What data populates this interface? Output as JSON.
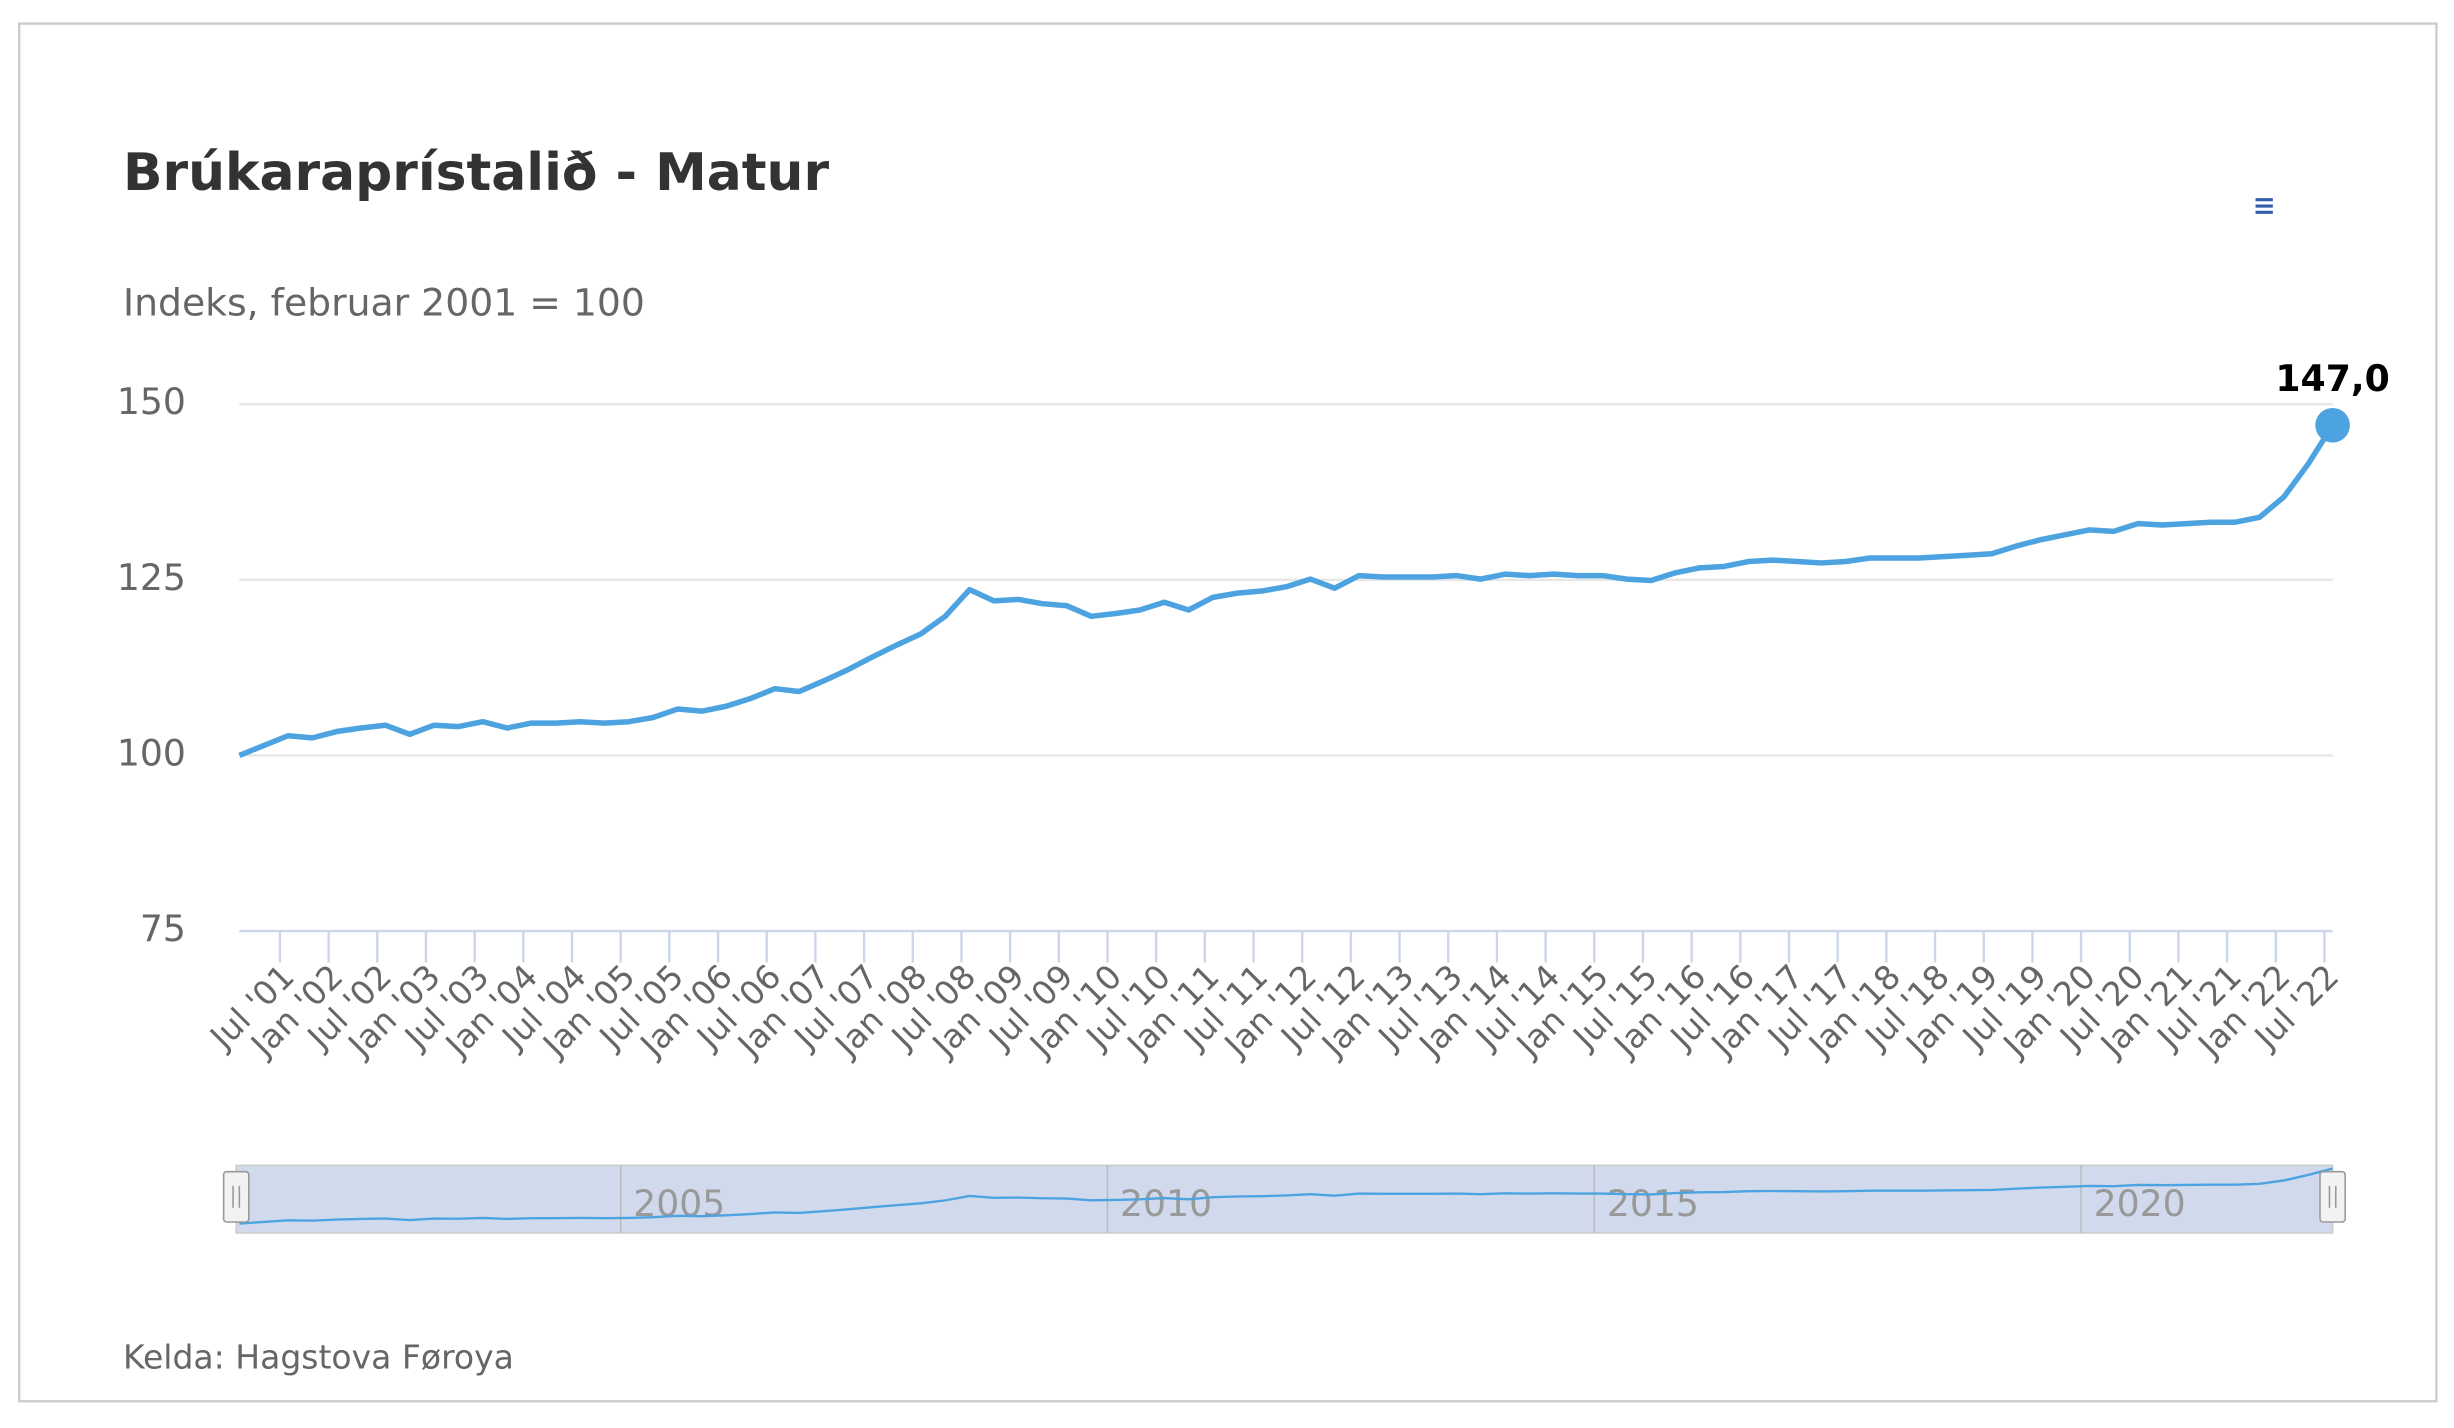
{
  "chart_data": {
    "type": "line",
    "title": "Brúkaraprístalið - Matur",
    "subtitle": "Indeks, februar 2001 = 100",
    "credits": "Kelda: Hagstova Føroya",
    "color": "#4da3e0",
    "x": [
      "2001-02",
      "2001-05",
      "2001-08",
      "2001-11",
      "2002-02",
      "2002-05",
      "2002-08",
      "2002-11",
      "2003-02",
      "2003-05",
      "2003-08",
      "2003-11",
      "2004-02",
      "2004-05",
      "2004-08",
      "2004-11",
      "2005-02",
      "2005-05",
      "2005-08",
      "2005-11",
      "2006-02",
      "2006-05",
      "2006-08",
      "2006-11",
      "2007-02",
      "2007-05",
      "2007-08",
      "2007-11",
      "2008-02",
      "2008-05",
      "2008-08",
      "2008-11",
      "2009-02",
      "2009-05",
      "2009-08",
      "2009-11",
      "2010-02",
      "2010-05",
      "2010-08",
      "2010-11",
      "2011-02",
      "2011-05",
      "2011-08",
      "2011-11",
      "2012-02",
      "2012-05",
      "2012-08",
      "2012-11",
      "2013-02",
      "2013-05",
      "2013-08",
      "2013-11",
      "2014-02",
      "2014-05",
      "2014-08",
      "2014-11",
      "2015-02",
      "2015-05",
      "2015-08",
      "2015-11",
      "2016-02",
      "2016-05",
      "2016-08",
      "2016-11",
      "2017-02",
      "2017-05",
      "2017-08",
      "2017-11",
      "2018-02",
      "2018-05",
      "2018-08",
      "2018-11",
      "2019-02",
      "2019-05",
      "2019-08",
      "2019-11",
      "2020-02",
      "2020-05",
      "2020-08",
      "2020-11",
      "2021-02",
      "2021-05",
      "2021-08",
      "2021-11",
      "2022-02",
      "2022-05",
      "2022-08"
    ],
    "values": [
      100,
      101.4,
      102.8,
      102.5,
      103.4,
      103.9,
      104.3,
      103.0,
      104.3,
      104.1,
      104.8,
      103.9,
      104.6,
      104.6,
      104.8,
      104.6,
      104.8,
      105.4,
      106.6,
      106.3,
      107.0,
      108.1,
      109.5,
      109.1,
      110.6,
      112.2,
      114.0,
      115.7,
      117.3,
      119.8,
      123.6,
      122.0,
      122.2,
      121.6,
      121.3,
      119.8,
      120.2,
      120.7,
      121.8,
      120.7,
      122.5,
      123.1,
      123.4,
      124.0,
      125.1,
      123.8,
      125.6,
      125.4,
      125.4,
      125.4,
      125.6,
      125.1,
      125.8,
      125.6,
      125.8,
      125.6,
      125.6,
      125.1,
      124.9,
      126.0,
      126.7,
      126.9,
      127.6,
      127.8,
      127.6,
      127.4,
      127.6,
      128.1,
      128.1,
      128.1,
      128.3,
      128.5,
      128.7,
      129.8,
      130.7,
      131.4,
      132.1,
      131.9,
      133.0,
      132.8,
      133.0,
      133.2,
      133.2,
      133.9,
      136.8,
      141.5,
      147.0
    ],
    "value_labels": [
      null,
      null,
      null,
      null,
      null,
      null,
      null,
      null,
      null,
      null,
      null,
      null,
      null,
      null,
      null,
      null,
      null,
      null,
      null,
      null,
      null,
      null,
      null,
      null,
      null,
      null,
      null,
      null,
      null,
      null,
      null,
      null,
      null,
      null,
      null,
      null,
      null,
      null,
      null,
      null,
      null,
      null,
      null,
      null,
      null,
      null,
      null,
      null,
      null,
      null,
      null,
      null,
      null,
      null,
      null,
      null,
      null,
      null,
      null,
      null,
      null,
      null,
      null,
      null,
      null,
      null,
      null,
      null,
      null,
      null,
      null,
      null,
      null,
      null,
      null,
      null,
      null,
      null,
      null,
      null,
      null,
      null,
      null,
      null,
      null,
      null,
      "147,0"
    ],
    "xlim": [
      "2001-02",
      "2022-08"
    ],
    "xticks": [
      {
        "value": "2001-07",
        "label": "Jul '01"
      },
      {
        "value": "2002-01",
        "label": "Jan '02"
      },
      {
        "value": "2002-07",
        "label": "Jul '02"
      },
      {
        "value": "2003-01",
        "label": "Jan '03"
      },
      {
        "value": "2003-07",
        "label": "Jul '03"
      },
      {
        "value": "2004-01",
        "label": "Jan '04"
      },
      {
        "value": "2004-07",
        "label": "Jul '04"
      },
      {
        "value": "2005-01",
        "label": "Jan '05"
      },
      {
        "value": "2005-07",
        "label": "Jul '05"
      },
      {
        "value": "2006-01",
        "label": "Jan '06"
      },
      {
        "value": "2006-07",
        "label": "Jul '06"
      },
      {
        "value": "2007-01",
        "label": "Jan '07"
      },
      {
        "value": "2007-07",
        "label": "Jul '07"
      },
      {
        "value": "2008-01",
        "label": "Jan '08"
      },
      {
        "value": "2008-07",
        "label": "Jul '08"
      },
      {
        "value": "2009-01",
        "label": "Jan '09"
      },
      {
        "value": "2009-07",
        "label": "Jul '09"
      },
      {
        "value": "2010-01",
        "label": "Jan '10"
      },
      {
        "value": "2010-07",
        "label": "Jul '10"
      },
      {
        "value": "2011-01",
        "label": "Jan '11"
      },
      {
        "value": "2011-07",
        "label": "Jul '11"
      },
      {
        "value": "2012-01",
        "label": "Jan '12"
      },
      {
        "value": "2012-07",
        "label": "Jul '12"
      },
      {
        "value": "2013-01",
        "label": "Jan '13"
      },
      {
        "value": "2013-07",
        "label": "Jul '13"
      },
      {
        "value": "2014-01",
        "label": "Jan '14"
      },
      {
        "value": "2014-07",
        "label": "Jul '14"
      },
      {
        "value": "2015-01",
        "label": "Jan '15"
      },
      {
        "value": "2015-07",
        "label": "Jul '15"
      },
      {
        "value": "2016-01",
        "label": "Jan '16"
      },
      {
        "value": "2016-07",
        "label": "Jul '16"
      },
      {
        "value": "2017-01",
        "label": "Jan '17"
      },
      {
        "value": "2017-07",
        "label": "Jul '17"
      },
      {
        "value": "2018-01",
        "label": "Jan '18"
      },
      {
        "value": "2018-07",
        "label": "Jul '18"
      },
      {
        "value": "2019-01",
        "label": "Jan '19"
      },
      {
        "value": "2019-07",
        "label": "Jul '19"
      },
      {
        "value": "2020-01",
        "label": "Jan '20"
      },
      {
        "value": "2020-07",
        "label": "Jul '20"
      },
      {
        "value": "2021-01",
        "label": "Jan '21"
      },
      {
        "value": "2021-07",
        "label": "Jul '21"
      },
      {
        "value": "2022-01",
        "label": "Jan '22"
      },
      {
        "value": "2022-07",
        "label": "Jul '22"
      }
    ],
    "ylim": [
      75,
      150
    ],
    "yticks": [
      75,
      100,
      125,
      150
    ],
    "grid": true,
    "navigator": {
      "xticks": [
        {
          "value": "2005-01",
          "label": "2005"
        },
        {
          "value": "2010-01",
          "label": "2010"
        },
        {
          "value": "2015-01",
          "label": "2015"
        },
        {
          "value": "2020-01",
          "label": "2020"
        }
      ]
    }
  }
}
